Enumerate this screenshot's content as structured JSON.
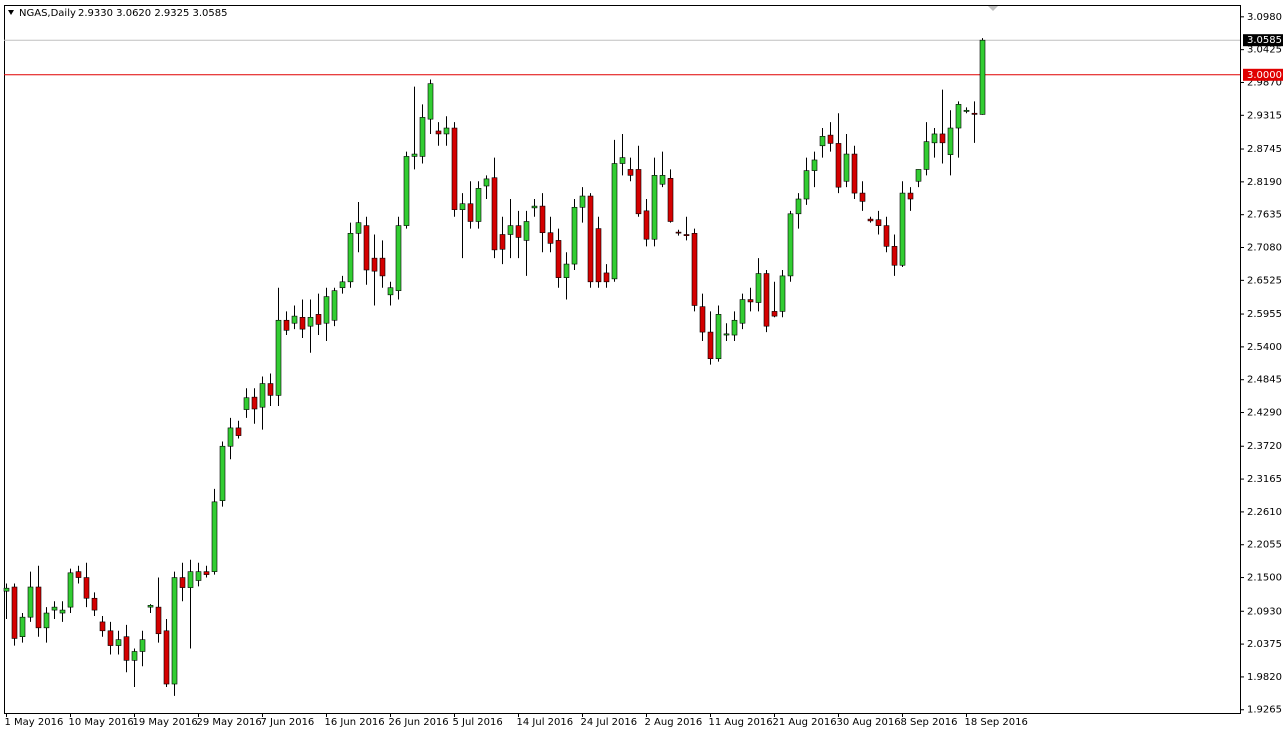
{
  "chart_data": {
    "type": "candlestick",
    "title": "NGAS,Daily",
    "quote": "2.9330 3.0620 2.9325 3.0585",
    "categories": [
      "1 May 2016",
      null,
      null,
      null,
      null,
      null,
      null,
      null,
      "10 May 2016",
      null,
      null,
      null,
      null,
      null,
      null,
      null,
      "19 May 2016",
      null,
      null,
      null,
      null,
      null,
      null,
      null,
      "29 May 2016",
      null,
      null,
      null,
      null,
      null,
      null,
      null,
      "7 Jun 2016",
      null,
      null,
      null,
      null,
      null,
      null,
      null,
      "16 Jun 2016",
      null,
      null,
      null,
      null,
      null,
      null,
      null,
      "26 Jun 2016",
      null,
      null,
      null,
      null,
      null,
      null,
      null,
      "5 Jul 2016",
      null,
      null,
      null,
      null,
      null,
      null,
      null,
      "14 Jul 2016",
      null,
      null,
      null,
      null,
      null,
      null,
      null,
      "24 Jul 2016",
      null,
      null,
      null,
      null,
      null,
      null,
      null,
      "2 Aug 2016",
      null,
      null,
      null,
      null,
      null,
      null,
      null,
      "11 Aug 2016",
      null,
      null,
      null,
      null,
      null,
      null,
      null,
      "21 Aug 2016",
      null,
      null,
      null,
      null,
      null,
      null,
      null,
      "30 Aug 2016",
      null,
      null,
      null,
      null,
      null,
      null,
      null,
      "8 Sep 2016",
      null,
      null,
      null,
      null,
      null,
      null,
      null,
      "18 Sep 2016",
      null,
      null
    ],
    "open": [
      2.127,
      2.134,
      2.05,
      2.083,
      2.134,
      2.065,
      2.095,
      2.09,
      2.1,
      2.16,
      2.15,
      2.115,
      2.075,
      2.06,
      2.035,
      2.05,
      2.01,
      2.025,
      2.1,
      2.1,
      2.06,
      1.97,
      2.15,
      2.133,
      2.145,
      2.16,
      2.16,
      2.28,
      2.372,
      2.403,
      2.434,
      2.455,
      2.438,
      2.478,
      2.458,
      2.585,
      2.58,
      2.59,
      2.575,
      2.595,
      2.58,
      2.585,
      2.64,
      2.65,
      2.732,
      2.745,
      2.69,
      2.69,
      2.628,
      2.635,
      2.745,
      2.862,
      2.862,
      2.925,
      2.905,
      2.9,
      2.91,
      2.772,
      2.782,
      2.752,
      2.812,
      2.826,
      2.73,
      2.73,
      2.745,
      2.72,
      2.775,
      2.778,
      2.733,
      2.72,
      2.657,
      2.68,
      2.776,
      2.795,
      2.74,
      2.665,
      2.655,
      2.85,
      2.84,
      2.84,
      2.77,
      2.722,
      2.815,
      2.825,
      2.734,
      2.73,
      2.732,
      2.608,
      2.565,
      2.52,
      2.56,
      2.56,
      2.58,
      2.62,
      2.615,
      2.664,
      2.6,
      2.6,
      2.66,
      2.765,
      2.79,
      2.838,
      2.88,
      2.898,
      2.884,
      2.82,
      2.866,
      2.8,
      2.756,
      2.755,
      2.745,
      2.71,
      2.678,
      2.8,
      2.82,
      2.84,
      2.885,
      2.9,
      2.865,
      2.91,
      2.938,
      2.935,
      2.933
    ],
    "high": [
      2.14,
      2.14,
      2.09,
      2.16,
      2.17,
      2.1,
      2.11,
      2.11,
      2.165,
      2.17,
      2.175,
      2.125,
      2.085,
      2.075,
      2.06,
      2.07,
      2.03,
      2.06,
      2.105,
      2.15,
      2.08,
      2.16,
      2.175,
      2.18,
      2.175,
      2.17,
      2.3,
      2.38,
      2.42,
      2.415,
      2.47,
      2.47,
      2.49,
      2.495,
      2.64,
      2.6,
      2.61,
      2.62,
      2.62,
      2.63,
      2.64,
      2.64,
      2.66,
      2.75,
      2.785,
      2.76,
      2.73,
      2.72,
      2.65,
      2.76,
      2.87,
      2.98,
      2.95,
      2.992,
      2.92,
      2.93,
      2.92,
      2.8,
      2.82,
      2.82,
      2.83,
      2.86,
      2.76,
      2.79,
      2.77,
      2.77,
      2.79,
      2.8,
      2.76,
      2.74,
      2.7,
      2.79,
      2.81,
      2.8,
      2.76,
      2.68,
      2.89,
      2.9,
      2.86,
      2.88,
      2.79,
      2.86,
      2.87,
      2.84,
      2.738,
      2.76,
      2.74,
      2.63,
      2.6,
      2.61,
      2.58,
      2.6,
      2.63,
      2.64,
      2.69,
      2.67,
      2.65,
      2.67,
      2.77,
      2.8,
      2.86,
      2.87,
      2.91,
      2.92,
      2.935,
      2.9,
      2.88,
      2.82,
      2.76,
      2.77,
      2.76,
      2.73,
      2.82,
      2.81,
      2.84,
      2.92,
      2.91,
      2.975,
      2.94,
      2.955,
      2.945,
      2.955,
      3.062
    ],
    "low": [
      2.08,
      2.035,
      2.04,
      2.075,
      2.05,
      2.04,
      2.08,
      2.075,
      2.09,
      2.14,
      2.1,
      2.085,
      2.05,
      2.02,
      2.02,
      1.99,
      1.965,
      2.0,
      2.09,
      2.04,
      1.965,
      1.95,
      2.11,
      2.03,
      2.135,
      2.15,
      2.155,
      2.27,
      2.35,
      2.385,
      2.42,
      2.41,
      2.4,
      2.44,
      2.44,
      2.56,
      2.57,
      2.555,
      2.53,
      2.56,
      2.55,
      2.575,
      2.63,
      2.64,
      2.7,
      2.645,
      2.61,
      2.64,
      2.61,
      2.62,
      2.74,
      2.84,
      2.85,
      2.9,
      2.88,
      2.88,
      2.76,
      2.69,
      2.74,
      2.74,
      2.79,
      2.69,
      2.68,
      2.69,
      2.69,
      2.66,
      2.76,
      2.7,
      2.7,
      2.64,
      2.62,
      2.67,
      2.75,
      2.64,
      2.64,
      2.64,
      2.65,
      2.83,
      2.82,
      2.76,
      2.71,
      2.71,
      2.81,
      2.75,
      2.728,
      2.72,
      2.6,
      2.55,
      2.51,
      2.515,
      2.55,
      2.55,
      2.57,
      2.6,
      2.6,
      2.565,
      2.59,
      2.59,
      2.65,
      2.74,
      2.78,
      2.81,
      2.86,
      2.87,
      2.8,
      2.81,
      2.79,
      2.77,
      2.75,
      2.73,
      2.7,
      2.66,
      2.675,
      2.77,
      2.81,
      2.83,
      2.86,
      2.85,
      2.83,
      2.86,
      2.935,
      2.885,
      2.9325
    ],
    "close": [
      2.132,
      2.047,
      2.083,
      2.134,
      2.065,
      2.09,
      2.1,
      2.095,
      2.158,
      2.15,
      2.115,
      2.095,
      2.06,
      2.035,
      2.045,
      2.01,
      2.025,
      2.045,
      2.103,
      2.055,
      1.97,
      2.15,
      2.133,
      2.16,
      2.16,
      2.155,
      2.278,
      2.372,
      2.403,
      2.39,
      2.454,
      2.435,
      2.478,
      2.458,
      2.585,
      2.568,
      2.592,
      2.57,
      2.59,
      2.578,
      2.625,
      2.635,
      2.65,
      2.732,
      2.75,
      2.67,
      2.668,
      2.66,
      2.64,
      2.745,
      2.862,
      2.866,
      2.928,
      2.985,
      2.9,
      2.91,
      2.772,
      2.782,
      2.752,
      2.808,
      2.824,
      2.704,
      2.705,
      2.745,
      2.725,
      2.752,
      2.778,
      2.733,
      2.715,
      2.657,
      2.68,
      2.776,
      2.795,
      2.65,
      2.65,
      2.65,
      2.85,
      2.86,
      2.83,
      2.765,
      2.722,
      2.83,
      2.83,
      2.752,
      2.733,
      2.728,
      2.61,
      2.565,
      2.52,
      2.595,
      2.562,
      2.585,
      2.62,
      2.616,
      2.664,
      2.575,
      2.592,
      2.66,
      2.765,
      2.79,
      2.838,
      2.856,
      2.896,
      2.884,
      2.81,
      2.866,
      2.8,
      2.786,
      2.753,
      2.745,
      2.71,
      2.678,
      2.8,
      2.79,
      2.84,
      2.887,
      2.9,
      2.885,
      2.91,
      2.95,
      2.94,
      2.933,
      3.0585
    ],
    "up_color": "#32cd32",
    "down_color": "#d40000",
    "ylim": [
      1.921,
      3.118
    ],
    "yticks": [
      {
        "value": 3.098,
        "label": "3.0980"
      },
      {
        "value": 3.0425,
        "label": "3.0425"
      },
      {
        "value": 2.987,
        "label": "2.9870"
      },
      {
        "value": 2.9315,
        "label": "2.9315"
      },
      {
        "value": 2.8745,
        "label": "2.8745"
      },
      {
        "value": 2.819,
        "label": "2.8190"
      },
      {
        "value": 2.7635,
        "label": "2.7635"
      },
      {
        "value": 2.708,
        "label": "2.7080"
      },
      {
        "value": 2.6525,
        "label": "2.6525"
      },
      {
        "value": 2.5955,
        "label": "2.5955"
      },
      {
        "value": 2.54,
        "label": "2.5400"
      },
      {
        "value": 2.4845,
        "label": "2.4845"
      },
      {
        "value": 2.429,
        "label": "2.4290"
      },
      {
        "value": 2.372,
        "label": "2.3720"
      },
      {
        "value": 2.3165,
        "label": "2.3165"
      },
      {
        "value": 2.261,
        "label": "2.2610"
      },
      {
        "value": 2.2055,
        "label": "2.2055"
      },
      {
        "value": 2.15,
        "label": "2.1500"
      },
      {
        "value": 2.093,
        "label": "2.0930"
      },
      {
        "value": 2.0375,
        "label": "2.0375"
      },
      {
        "value": 1.982,
        "label": "1.9820"
      },
      {
        "value": 1.9265,
        "label": "1.9265"
      }
    ],
    "bid_line": {
      "value": 3.0585,
      "label": "3.0585",
      "color": "#c0c0c0"
    },
    "level_line": {
      "value": 3.0,
      "label": "3.0000",
      "color": "#e00000"
    }
  }
}
